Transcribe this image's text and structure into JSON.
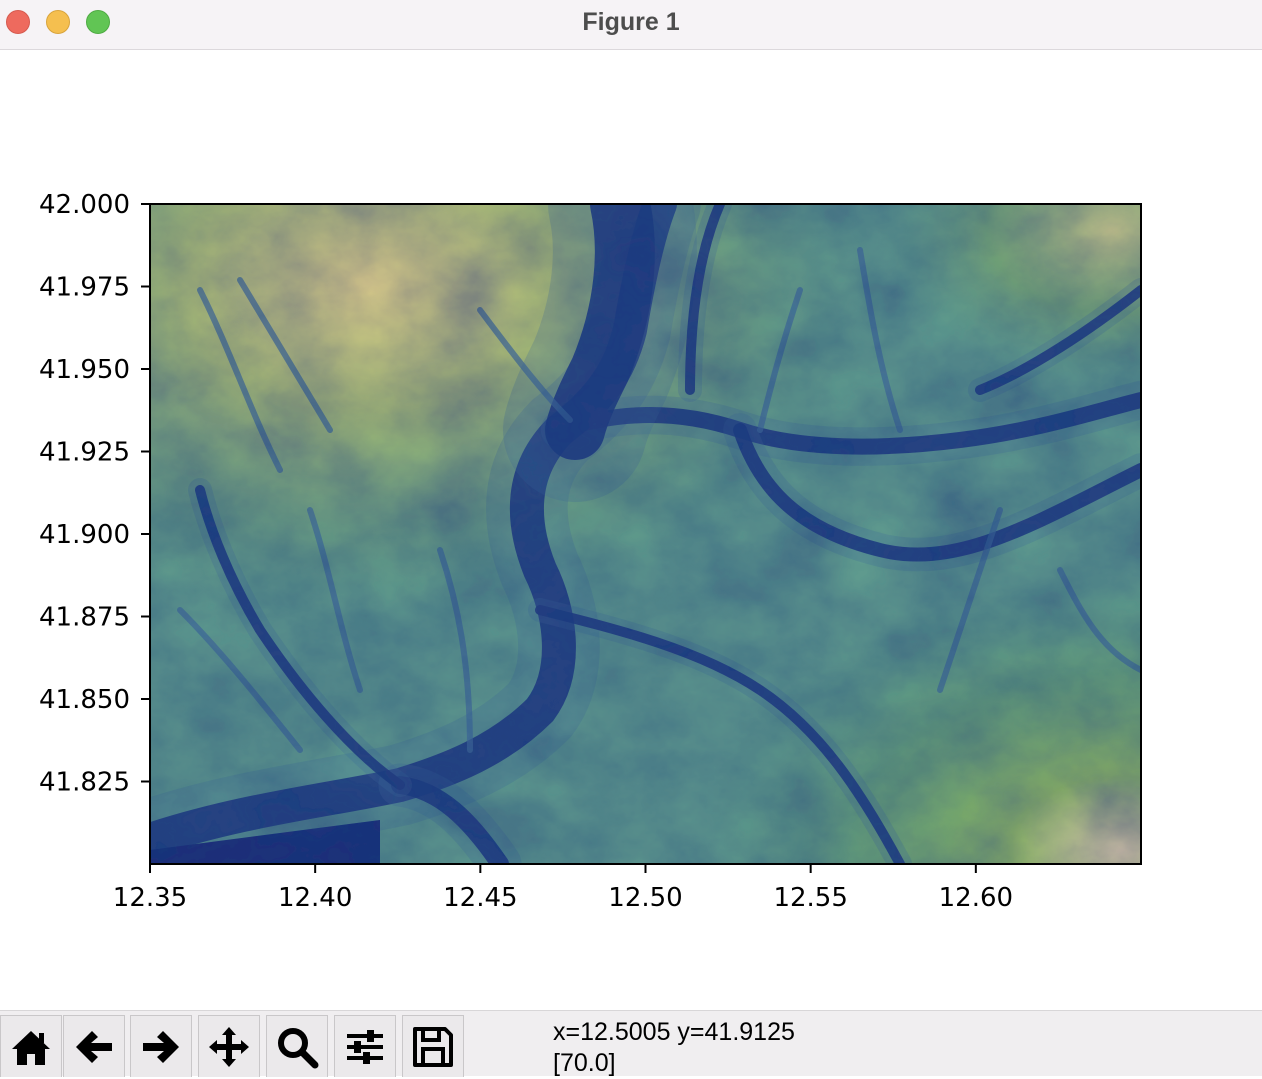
{
  "window": {
    "title": "Figure 1"
  },
  "toolbar": {
    "buttons": [
      {
        "name": "home-button",
        "icon": "home-icon"
      },
      {
        "name": "back-button",
        "icon": "arrow-left-icon"
      },
      {
        "name": "forward-button",
        "icon": "arrow-right-icon"
      },
      {
        "name": "pan-button",
        "icon": "move-icon"
      },
      {
        "name": "zoom-button",
        "icon": "magnifier-icon"
      },
      {
        "name": "configure-subplots-button",
        "icon": "sliders-icon"
      },
      {
        "name": "save-button",
        "icon": "floppy-disk-icon"
      }
    ],
    "coords": "x=12.5005 y=41.9125",
    "value": "[70.0]"
  },
  "chart_data": {
    "type": "heatmap",
    "title": "",
    "xlabel": "",
    "ylabel": "",
    "colormap": "gist_earth",
    "xlim": [
      12.35,
      12.65
    ],
    "ylim": [
      41.8,
      42.0
    ],
    "x_ticks": [
      "12.35",
      "12.40",
      "12.45",
      "12.50",
      "12.55",
      "12.60"
    ],
    "x_tick_values": [
      12.35,
      12.4,
      12.45,
      12.5,
      12.55,
      12.6
    ],
    "y_ticks": [
      "42.000",
      "41.975",
      "41.950",
      "41.925",
      "41.900",
      "41.875",
      "41.850",
      "41.825"
    ],
    "y_tick_values": [
      42.0,
      41.975,
      41.95,
      41.925,
      41.9,
      41.875,
      41.85,
      41.825
    ],
    "grid": false,
    "colors": {
      "low": "#1a2f78",
      "mid_low": "#3f6a9a",
      "mid": "#5e9a8e",
      "mid_high": "#73a85e",
      "high": "#d8c98a"
    }
  }
}
